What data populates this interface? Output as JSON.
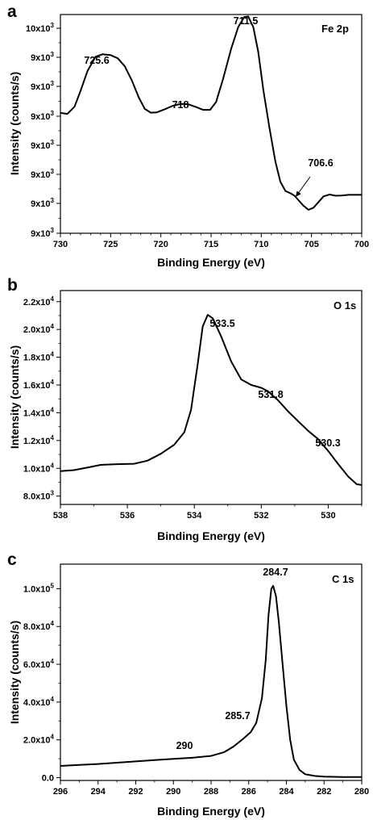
{
  "chart_data": [
    {
      "type": "line",
      "panel_letter": "a",
      "tag": "Fe 2p",
      "xlabel": "Binding Energy (eV)",
      "ylabel": "Intensity (counts/s)",
      "x_reversed": true,
      "xlim": [
        730,
        700
      ],
      "xticks": [
        "730",
        "725",
        "720",
        "715",
        "710",
        "705",
        "700"
      ],
      "ylim": [
        0,
        7
      ],
      "yticks": [
        {
          "base": "9x10",
          "exp": "3"
        },
        {
          "base": "9x10",
          "exp": "3"
        },
        {
          "base": "9x10",
          "exp": "3"
        },
        {
          "base": "9x10",
          "exp": "3"
        },
        {
          "base": "9x10",
          "exp": "3"
        },
        {
          "base": "9x10",
          "exp": "3"
        },
        {
          "base": "9x10",
          "exp": "3"
        },
        {
          "base": "10x10",
          "exp": "3"
        }
      ],
      "series": [
        {
          "points": [
            [
              730,
              3.85
            ],
            [
              729.3,
              3.82
            ],
            [
              728.6,
              4.05
            ],
            [
              728,
              4.55
            ],
            [
              727.3,
              5.2
            ],
            [
              726.5,
              5.65
            ],
            [
              725.8,
              5.73
            ],
            [
              725,
              5.7
            ],
            [
              724.3,
              5.6
            ],
            [
              723.6,
              5.35
            ],
            [
              722.9,
              4.9
            ],
            [
              722.2,
              4.35
            ],
            [
              721.6,
              3.98
            ],
            [
              721,
              3.86
            ],
            [
              720.4,
              3.87
            ],
            [
              719.6,
              3.97
            ],
            [
              718.8,
              4.08
            ],
            [
              718,
              4.14
            ],
            [
              717.3,
              4.13
            ],
            [
              716.5,
              4.04
            ],
            [
              715.8,
              3.95
            ],
            [
              715.1,
              3.95
            ],
            [
              714.5,
              4.2
            ],
            [
              713.8,
              4.95
            ],
            [
              713,
              5.9
            ],
            [
              712.3,
              6.6
            ],
            [
              711.7,
              6.92
            ],
            [
              711.3,
              6.94
            ],
            [
              710.8,
              6.6
            ],
            [
              710.3,
              5.8
            ],
            [
              709.8,
              4.6
            ],
            [
              709.2,
              3.4
            ],
            [
              708.6,
              2.3
            ],
            [
              708.1,
              1.65
            ],
            [
              707.6,
              1.35
            ],
            [
              707.1,
              1.28
            ],
            [
              706.7,
              1.2
            ],
            [
              706.3,
              1.06
            ],
            [
              705.8,
              0.88
            ],
            [
              705.3,
              0.75
            ],
            [
              704.8,
              0.82
            ],
            [
              704.3,
              1.0
            ],
            [
              703.8,
              1.18
            ],
            [
              703.2,
              1.24
            ],
            [
              702.6,
              1.2
            ],
            [
              702,
              1.21
            ],
            [
              701.3,
              1.23
            ],
            [
              700.6,
              1.23
            ],
            [
              700,
              1.23
            ]
          ]
        }
      ],
      "annotations": [
        {
          "text": "725.6",
          "x": 725.6,
          "y": 5.73
        },
        {
          "text": "718",
          "x": 718.0,
          "y": 4.14
        },
        {
          "text": "711.5",
          "x": 711.5,
          "y": 6.94
        },
        {
          "text": "706.6",
          "x": 706.6,
          "y": 1.2,
          "arrow": true
        }
      ]
    },
    {
      "type": "line",
      "panel_letter": "b",
      "tag": "O 1s",
      "xlabel": "Binding Energy (eV)",
      "ylabel": "Intensity (counts/s)",
      "x_reversed": true,
      "xlim": [
        538,
        529
      ],
      "xticks": [
        "538",
        "536",
        "534",
        "532",
        "530"
      ],
      "ylim": [
        7400,
        22800
      ],
      "yticks": [
        {
          "v": 8000,
          "base": "8.0x10",
          "exp": "3"
        },
        {
          "v": 10000,
          "base": "1.0x10",
          "exp": "4"
        },
        {
          "v": 12000,
          "base": "1.2x10",
          "exp": "4"
        },
        {
          "v": 14000,
          "base": "1.4x10",
          "exp": "4"
        },
        {
          "v": 16000,
          "base": "1.6x10",
          "exp": "4"
        },
        {
          "v": 18000,
          "base": "1.8x10",
          "exp": "4"
        },
        {
          "v": 20000,
          "base": "2.0x10",
          "exp": "4"
        },
        {
          "v": 22000,
          "base": "2.2x10",
          "exp": "4"
        }
      ],
      "series": [
        {
          "points": [
            [
              538,
              9800
            ],
            [
              537.6,
              9870
            ],
            [
              537.2,
              10050
            ],
            [
              536.8,
              10250
            ],
            [
              536.3,
              10300
            ],
            [
              535.8,
              10330
            ],
            [
              535.4,
              10550
            ],
            [
              535,
              11050
            ],
            [
              534.6,
              11700
            ],
            [
              534.3,
              12600
            ],
            [
              534.1,
              14200
            ],
            [
              533.9,
              17500
            ],
            [
              533.75,
              20200
            ],
            [
              533.6,
              21050
            ],
            [
              533.45,
              20800
            ],
            [
              533.2,
              19500
            ],
            [
              532.9,
              17700
            ],
            [
              532.6,
              16400
            ],
            [
              532.3,
              16000
            ],
            [
              532,
              15800
            ],
            [
              531.8,
              15550
            ],
            [
              531.5,
              14900
            ],
            [
              531.2,
              14100
            ],
            [
              530.9,
              13400
            ],
            [
              530.6,
              12700
            ],
            [
              530.3,
              12100
            ],
            [
              530,
              11250
            ],
            [
              529.7,
              10300
            ],
            [
              529.4,
              9400
            ],
            [
              529.15,
              8850
            ],
            [
              529,
              8800
            ]
          ]
        }
      ],
      "annotations": [
        {
          "text": "533.5",
          "x": 533.5,
          "y": 21050
        },
        {
          "text": "531.8",
          "x": 531.8,
          "y": 15550
        },
        {
          "text": "530.3",
          "x": 530.3,
          "y": 12100
        }
      ]
    },
    {
      "type": "line",
      "panel_letter": "c",
      "tag": "C 1s",
      "xlabel": "Binding Energy (eV)",
      "ylabel": "Intensity (counts/s)",
      "x_reversed": true,
      "xlim": [
        296,
        280
      ],
      "xticks": [
        "296",
        "294",
        "292",
        "290",
        "288",
        "286",
        "284",
        "282",
        "280"
      ],
      "ylim": [
        -1500,
        113000
      ],
      "yticks": [
        {
          "v": 0,
          "base": "0.0",
          "exp": ""
        },
        {
          "v": 20000,
          "base": "2.0x10",
          "exp": "4"
        },
        {
          "v": 40000,
          "base": "4.0x10",
          "exp": "4"
        },
        {
          "v": 60000,
          "base": "6.0x10",
          "exp": "4"
        },
        {
          "v": 80000,
          "base": "8.0x10",
          "exp": "4"
        },
        {
          "v": 100000,
          "base": "1.0x10",
          "exp": "5"
        }
      ],
      "series": [
        {
          "points": [
            [
              296,
              6200
            ],
            [
              295,
              6700
            ],
            [
              294,
              7200
            ],
            [
              293,
              7900
            ],
            [
              292,
              8600
            ],
            [
              291,
              9300
            ],
            [
              290,
              9900
            ],
            [
              289,
              10500
            ],
            [
              288,
              11500
            ],
            [
              287.3,
              13500
            ],
            [
              286.8,
              16500
            ],
            [
              286.3,
              20500
            ],
            [
              285.9,
              24000
            ],
            [
              285.6,
              29000
            ],
            [
              285.3,
              42000
            ],
            [
              285.1,
              62000
            ],
            [
              284.95,
              86000
            ],
            [
              284.8,
              100000
            ],
            [
              284.7,
              101500
            ],
            [
              284.55,
              96000
            ],
            [
              284.4,
              82000
            ],
            [
              284.2,
              60000
            ],
            [
              284,
              38000
            ],
            [
              283.8,
              20000
            ],
            [
              283.6,
              9500
            ],
            [
              283.3,
              4000
            ],
            [
              283,
              1800
            ],
            [
              282.5,
              900
            ],
            [
              282,
              500
            ],
            [
              281,
              300
            ],
            [
              280,
              300
            ]
          ]
        }
      ],
      "annotations": [
        {
          "text": "284.7",
          "x": 284.7,
          "y": 101500
        },
        {
          "text": "285.7",
          "x": 285.7,
          "y": 24000
        },
        {
          "text": "290",
          "x": 290,
          "y": 9900
        }
      ]
    }
  ]
}
